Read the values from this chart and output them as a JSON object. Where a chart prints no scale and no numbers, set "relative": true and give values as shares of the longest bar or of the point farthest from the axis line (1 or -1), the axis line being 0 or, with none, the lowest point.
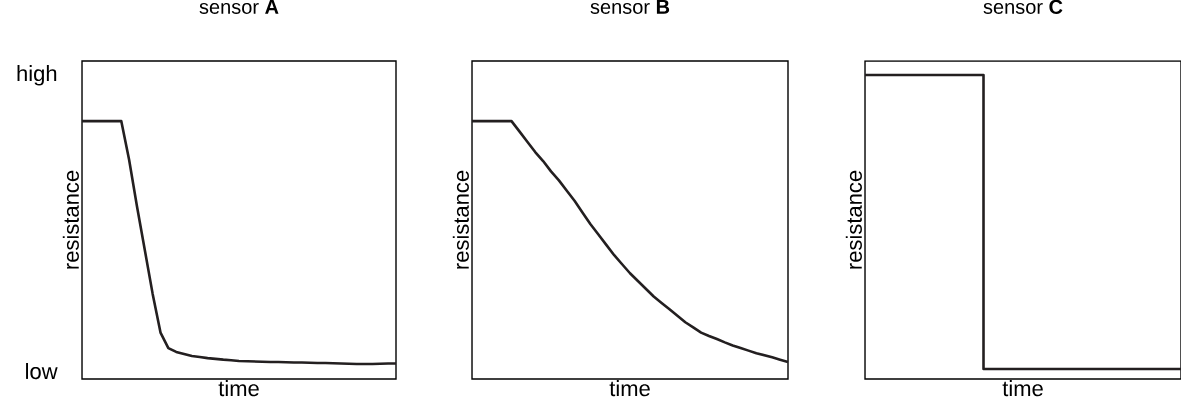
{
  "chart_data": [
    {
      "type": "line",
      "title": "sensor **A**",
      "xlabel": "time",
      "ylabel": "resistance",
      "relative": true,
      "annotations": [
        "high",
        "low"
      ],
      "categories": [
        null,
        null,
        null,
        null,
        null,
        null,
        null,
        null,
        null,
        null,
        null,
        null,
        null,
        null,
        null,
        null,
        null,
        null,
        null,
        null,
        null,
        null,
        null,
        null,
        null,
        null,
        null,
        null,
        null,
        null,
        null,
        null,
        null,
        null,
        null,
        null,
        null,
        null,
        null,
        null,
        null
      ],
      "series": [
        {
          "color": "#231f20",
          "values": [
            1,
            1,
            1,
            1,
            1,
            1,
            0.85,
            0.67,
            0.5,
            0.33,
            0.18,
            0.12,
            0.105,
            0.097,
            0.089,
            0.085,
            0.081,
            0.078,
            0.075,
            0.073,
            0.07,
            0.069,
            0.068,
            0.067,
            0.066,
            0.066,
            0.065,
            0.064,
            0.064,
            0.063,
            0.062,
            0.062,
            0.061,
            0.06,
            0.059,
            0.058,
            0.058,
            0.058,
            0.059,
            0.06,
            0.06
          ]
        }
      ]
    },
    {
      "type": "line",
      "title": "sensor **B**",
      "xlabel": "time",
      "ylabel": "resistance",
      "relative": true,
      "categories": [
        null,
        null,
        null,
        null,
        null,
        null,
        null,
        null,
        null,
        null,
        null,
        null,
        null,
        null,
        null,
        null,
        null,
        null,
        null,
        null,
        null,
        null,
        null,
        null,
        null,
        null,
        null,
        null,
        null,
        null,
        null,
        null,
        null,
        null,
        null,
        null,
        null,
        null,
        null,
        null,
        null
      ],
      "series": [
        {
          "color": "#231f20",
          "values": [
            1,
            1,
            1,
            1,
            1,
            1,
            0.96,
            0.92,
            0.88,
            0.845,
            0.805,
            0.77,
            0.73,
            0.69,
            0.645,
            0.6,
            0.56,
            0.52,
            0.48,
            0.445,
            0.41,
            0.38,
            0.35,
            0.32,
            0.295,
            0.27,
            0.245,
            0.22,
            0.2,
            0.18,
            0.167,
            0.155,
            0.142,
            0.13,
            0.12,
            0.11,
            0.1,
            0.092,
            0.084,
            0.075,
            0.066
          ]
        }
      ]
    },
    {
      "type": "step",
      "title": "sensor **C**",
      "xlabel": "time",
      "ylabel": "resistance",
      "relative": true,
      "categories": [
        null,
        null,
        null,
        null,
        null,
        null,
        null,
        null,
        null,
        null,
        null,
        null,
        null,
        null,
        null,
        null,
        null,
        null,
        null,
        null,
        null,
        null,
        null,
        null,
        null,
        null,
        null,
        null,
        null,
        null,
        null,
        null,
        null,
        null,
        null,
        null,
        null,
        null,
        null,
        null,
        null
      ],
      "series": [
        {
          "color": "#231f20",
          "values": [
            1,
            1,
            1,
            1,
            1,
            1,
            1,
            1,
            1,
            1,
            1,
            1,
            1,
            1,
            1,
            0.033,
            0.033,
            0.033,
            0.033,
            0.033,
            0.033,
            0.033,
            0.033,
            0.033,
            0.033,
            0.033,
            0.033,
            0.033,
            0.033,
            0.033,
            0.033,
            0.033,
            0.033,
            0.033,
            0.033,
            0.033,
            0.033,
            0.033,
            0.033,
            0.033,
            0.033
          ]
        }
      ]
    }
  ]
}
